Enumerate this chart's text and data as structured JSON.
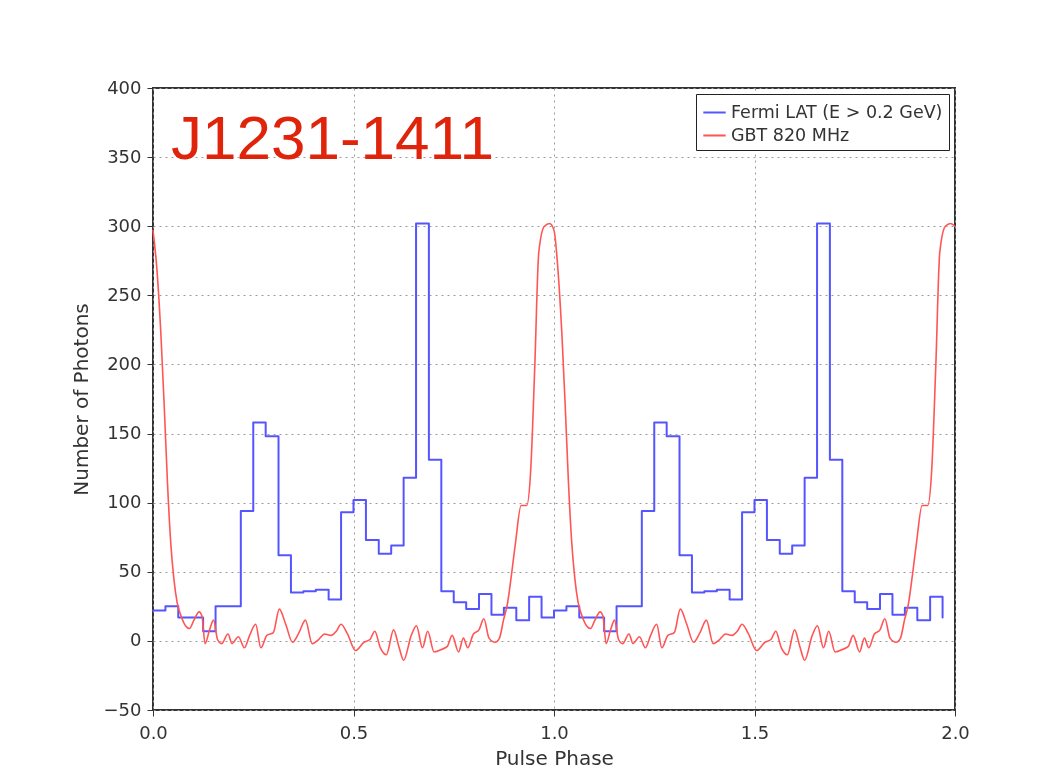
{
  "chart_data": {
    "type": "step",
    "title": "J1231-1411",
    "xlabel": "Pulse Phase",
    "ylabel": "Number of Photons",
    "xlim": [
      0,
      2
    ],
    "ylim": [
      -50,
      400
    ],
    "xticks": [
      {
        "value": 0,
        "label": "0.0"
      },
      {
        "value": 0.5,
        "label": "0.5"
      },
      {
        "value": 1,
        "label": "1.0"
      },
      {
        "value": 1.5,
        "label": "1.5"
      },
      {
        "value": 2,
        "label": "2.0"
      }
    ],
    "yticks": [
      {
        "value": -50,
        "label": "−50"
      },
      0,
      50,
      100,
      150,
      200,
      250,
      300,
      350,
      400
    ],
    "grid": true,
    "legend": "top right",
    "line_style": "solid",
    "series": [
      {
        "name": "Fermi LAT (E > 0.2 GeV)",
        "color": "#5555ff",
        "x": [
          0,
          0.031,
          0.063,
          0.094,
          0.125,
          0.156,
          0.188,
          0.219,
          0.25,
          0.281,
          0.313,
          0.344,
          0.375,
          0.406,
          0.438,
          0.469,
          0.5,
          0.531,
          0.563,
          0.594,
          0.625,
          0.656,
          0.688,
          0.719,
          0.75,
          0.781,
          0.813,
          0.844,
          0.875,
          0.906,
          0.938,
          0.969,
          1,
          1.031,
          1.063,
          1.094,
          1.125,
          1.156,
          1.188,
          1.219,
          1.25,
          1.281,
          1.313,
          1.344,
          1.375,
          1.406,
          1.438,
          1.469,
          1.5,
          1.531,
          1.563,
          1.594,
          1.625,
          1.656,
          1.688,
          1.719,
          1.75,
          1.781,
          1.813,
          1.844,
          1.875,
          1.906,
          1.938,
          1.969
        ],
        "values": [
          22,
          25,
          17,
          17,
          7,
          25,
          25,
          94,
          158,
          148,
          62,
          35,
          36,
          37,
          30,
          93,
          102,
          73,
          63,
          69,
          118,
          302,
          131,
          36,
          28,
          23,
          34,
          19,
          24,
          15,
          32,
          17,
          22,
          25,
          17,
          17,
          7,
          25,
          25,
          94,
          158,
          148,
          62,
          35,
          36,
          37,
          30,
          93,
          102,
          73,
          63,
          69,
          118,
          302,
          131,
          36,
          28,
          23,
          34,
          19,
          24,
          15,
          32,
          17
        ]
      },
      {
        "name": "GBT 820 MHz",
        "type": "line",
        "color": "#ff5555",
        "x": [
          0,
          0.01,
          0.02,
          0.028,
          0.036,
          0.044,
          0.052,
          0.06,
          0.07,
          0.081,
          0.091,
          0.102,
          0.115,
          0.122,
          0.13,
          0.141,
          0.151,
          0.161,
          0.171,
          0.187,
          0.197,
          0.213,
          0.228,
          0.241,
          0.256,
          0.269,
          0.284,
          0.3,
          0.315,
          0.331,
          0.348,
          0.364,
          0.38,
          0.397,
          0.413,
          0.428,
          0.444,
          0.457,
          0.469,
          0.485,
          0.505,
          0.526,
          0.541,
          0.553,
          0.567,
          0.582,
          0.6,
          0.613,
          0.625,
          0.644,
          0.657,
          0.672,
          0.685,
          0.701,
          0.721,
          0.734,
          0.746,
          0.762,
          0.774,
          0.785,
          0.799,
          0.813,
          0.825,
          0.838,
          0.853,
          0.864,
          0.874,
          0.884,
          0.894,
          0.904,
          0.918,
          0.932,
          0.942,
          0.952,
          0.962,
          0.976,
          0.989,
          1,
          1.01,
          1.02,
          1.028,
          1.036,
          1.044,
          1.052,
          1.06,
          1.07,
          1.081,
          1.091,
          1.102,
          1.115,
          1.122,
          1.13,
          1.141,
          1.151,
          1.161,
          1.171,
          1.187,
          1.197,
          1.213,
          1.228,
          1.241,
          1.256,
          1.269,
          1.284,
          1.3,
          1.315,
          1.331,
          1.348,
          1.364,
          1.38,
          1.397,
          1.413,
          1.428,
          1.444,
          1.457,
          1.469,
          1.485,
          1.505,
          1.526,
          1.541,
          1.553,
          1.567,
          1.582,
          1.6,
          1.613,
          1.625,
          1.644,
          1.657,
          1.672,
          1.685,
          1.701,
          1.721,
          1.734,
          1.746,
          1.762,
          1.774,
          1.785,
          1.799,
          1.813,
          1.825,
          1.838,
          1.853,
          1.864,
          1.874,
          1.884,
          1.894,
          1.904,
          1.918,
          1.932,
          1.942,
          1.952,
          1.962,
          1.976,
          1.989,
          2
        ],
        "values": [
          297,
          268,
          220,
          170,
          115,
          72,
          45,
          28,
          18,
          11,
          9,
          15,
          21,
          18,
          -2,
          8,
          15,
          1,
          -2,
          5,
          -2,
          3,
          -5,
          4,
          12,
          -5,
          4,
          6,
          23,
          12,
          -1,
          6,
          15,
          -2,
          1,
          5,
          4,
          7,
          12,
          5,
          -7,
          -1,
          1,
          7,
          -5,
          -10,
          8,
          -4,
          -14,
          4,
          11,
          -5,
          7,
          -8,
          -6,
          -4,
          4,
          -8,
          2,
          -5,
          5,
          8,
          16,
          2,
          -1,
          2,
          15,
          27,
          48,
          71,
          98,
          98,
          124,
          198,
          281,
          300,
          302,
          297,
          268,
          220,
          170,
          115,
          72,
          45,
          28,
          18,
          11,
          9,
          15,
          21,
          18,
          -2,
          8,
          15,
          1,
          -2,
          5,
          -2,
          3,
          -5,
          4,
          12,
          -5,
          4,
          6,
          23,
          12,
          -1,
          6,
          15,
          -2,
          1,
          5,
          4,
          7,
          12,
          5,
          -7,
          -1,
          1,
          7,
          -5,
          -10,
          8,
          -4,
          -14,
          4,
          11,
          -5,
          7,
          -8,
          -6,
          -4,
          4,
          -8,
          2,
          -5,
          5,
          8,
          16,
          2,
          -1,
          2,
          15,
          27,
          48,
          71,
          98,
          98,
          124,
          198,
          281,
          300,
          302,
          300
        ]
      }
    ]
  }
}
